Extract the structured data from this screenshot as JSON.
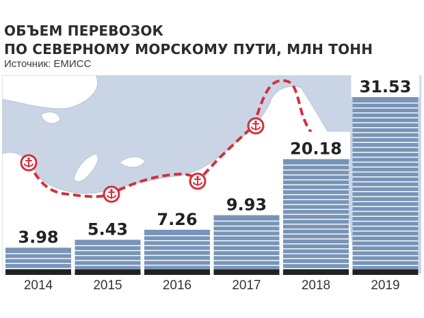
{
  "header": {
    "title_line1": "ОБЪЕМ ПЕРЕВОЗОК",
    "title_line2": "ПО СЕВЕРНОМУ МОРСКОМУ ПУТИ, МЛН ТОНН",
    "source": "Источник: ЕМИСС"
  },
  "colors": {
    "bar_fill": "#7895b8",
    "bar_stripe": "#ffffff",
    "bar_base": "#222222",
    "map_sea": "#c9d5e4",
    "map_land": "#ffffff",
    "route": "#d62e3c"
  },
  "icons": {
    "port": "anchor-icon"
  },
  "chart_data": {
    "type": "bar",
    "title": "ОБЪЕМ ПЕРЕВОЗОК ПО СЕВЕРНОМУ МОРСКОМУ ПУТИ, МЛН ТОНН",
    "source": "Источник: ЕМИСС",
    "categories": [
      "2014",
      "2015",
      "2016",
      "2017",
      "2018",
      "2019"
    ],
    "values": [
      3.98,
      5.43,
      7.26,
      9.93,
      20.18,
      31.53
    ],
    "value_labels": [
      "3.98",
      "5.43",
      "7.26",
      "9.93",
      "20.18",
      "31.53"
    ],
    "xlabel": "",
    "ylabel": "",
    "ylim": [
      0,
      31.53
    ],
    "grid": false,
    "legend": "none"
  }
}
